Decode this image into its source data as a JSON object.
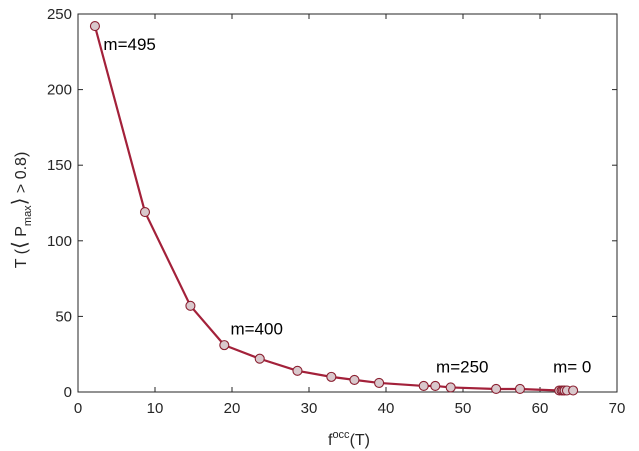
{
  "chart_data": {
    "type": "line",
    "xlabel": {
      "base": "f",
      "superscript": "occ",
      "suffix": "(T)"
    },
    "ylabel": {
      "prefix": "T (",
      "open": "⟨",
      "p": " P",
      "subscript": "max",
      "close": "⟩",
      "suffix": " > 0.8)"
    },
    "xlim": [
      0,
      70
    ],
    "ylim": [
      0,
      250
    ],
    "xticks": [
      0,
      10,
      20,
      30,
      40,
      50,
      60,
      70
    ],
    "yticks": [
      0,
      50,
      100,
      150,
      200,
      250
    ],
    "grid": false,
    "colors": {
      "line": "#a3213a",
      "marker_fill": "#d9c8cc",
      "marker_edge": "#8a1f30",
      "axis": "#262626"
    },
    "series": [
      {
        "x": [
          2.2,
          8.7,
          14.6,
          19.0,
          23.6,
          28.5,
          32.9,
          35.9,
          39.1,
          44.9,
          46.4,
          48.4,
          54.3,
          57.4,
          62.5,
          62.8,
          63.0,
          63.2,
          63.5,
          64.3
        ],
        "values": [
          242,
          119,
          57,
          31,
          22,
          14,
          10,
          8,
          6,
          4,
          4,
          3,
          2,
          2,
          1,
          1,
          1,
          1,
          1,
          1
        ]
      }
    ],
    "annotations": [
      {
        "text": "m=495",
        "x": 3.3,
        "y": 230
      },
      {
        "text": "m=400",
        "x": 19.8,
        "y": 42
      },
      {
        "text": "m=250",
        "x": 46.5,
        "y": 17
      },
      {
        "text": "m= 0",
        "x": 61.7,
        "y": 17
      }
    ]
  }
}
